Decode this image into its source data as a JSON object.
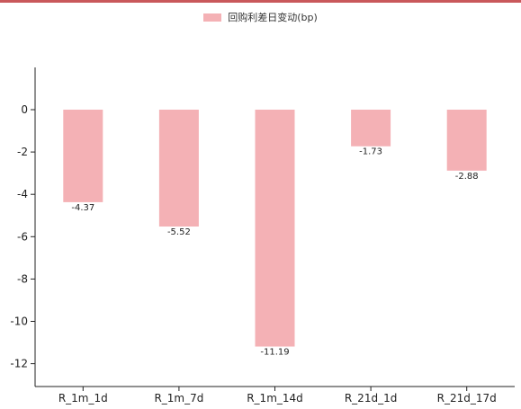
{
  "chart_data": {
    "type": "bar",
    "categories": [
      "R_1m_1d",
      "R_1m_7d",
      "R_1m_14d",
      "R_21d_1d",
      "R_21d_17d"
    ],
    "series": [
      {
        "name": "回购利差日变动(bp)",
        "values": [
          -4.37,
          -5.52,
          -11.19,
          -1.73,
          -2.88
        ]
      }
    ],
    "data_labels": [
      "-4.37",
      "-5.52",
      "-11.19",
      "-1.73",
      "-2.88"
    ],
    "yticks": [
      0,
      -2,
      -4,
      -6,
      -8,
      -10,
      -12
    ],
    "ylim": [
      -13.1,
      2.0
    ],
    "legend_position": "top-center",
    "grid": false,
    "bar_color": "#f4b1b5",
    "title": "",
    "xlabel": "",
    "ylabel": ""
  }
}
